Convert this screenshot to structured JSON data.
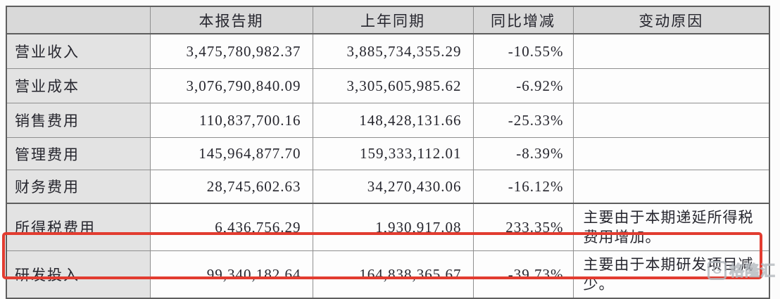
{
  "table": {
    "header": {
      "corner": "",
      "columns": [
        "本报告期",
        "上年同期",
        "同比增减",
        "变动原因"
      ]
    },
    "rows": [
      {
        "label": "营业收入",
        "current": "3,475,780,982.37",
        "prior": "3,885,734,355.29",
        "change": "-10.55%",
        "reason": ""
      },
      {
        "label": "营业成本",
        "current": "3,076,790,840.09",
        "prior": "3,305,605,985.62",
        "change": "-6.92%",
        "reason": ""
      },
      {
        "label": "销售费用",
        "current": "110,837,700.16",
        "prior": "148,428,131.66",
        "change": "-25.33%",
        "reason": ""
      },
      {
        "label": "管理费用",
        "current": "145,964,877.70",
        "prior": "159,333,112.01",
        "change": "-8.39%",
        "reason": ""
      },
      {
        "label": "财务费用",
        "current": "28,745,602.63",
        "prior": "34,270,430.06",
        "change": "-16.12%",
        "reason": ""
      },
      {
        "label": "所得税费用",
        "current": "6,436,756.29",
        "prior": "1,930,917.08",
        "change": "233.35%",
        "reason": "主要由于本期递延所得税费用增加。"
      },
      {
        "label": "研发投入",
        "current": "99,340,182.64",
        "prior": "164,838,365.67",
        "change": "-39.73%",
        "reason": "主要由于本期研发项目减少。"
      }
    ]
  },
  "highlight": {
    "highlighted_row_label": "研发投入",
    "color": "#e23c30"
  },
  "watermark": {
    "logo_letter": "G",
    "text": "格隆汇"
  },
  "colors": {
    "header_bg": "#d9d9d9",
    "label_column_bg": "#e3e3e3",
    "cell_bg": "#fdfdfd",
    "inner_border": "#8f8f8f",
    "strong_border": "#5e5e5e",
    "text": "#26262e",
    "highlight_red": "#e23c30",
    "watermark_gray": "#b4b9be"
  }
}
